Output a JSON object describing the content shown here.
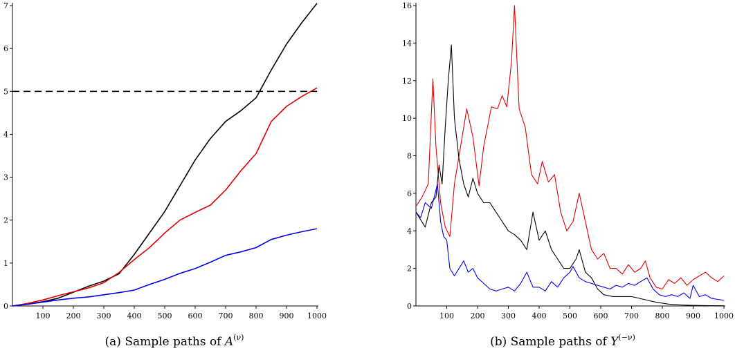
{
  "colors": {
    "black": "#000000",
    "red": "#e00000",
    "blue": "#0000e6"
  },
  "chart_data": [
    {
      "type": "line",
      "caption_prefix": "(a) Sample paths of ",
      "caption_var": "A",
      "caption_sup": "(ν)",
      "xlim": [
        0,
        1000
      ],
      "ylim": [
        0,
        7
      ],
      "x_ticks": [
        100,
        200,
        300,
        400,
        500,
        600,
        700,
        800,
        900,
        1000
      ],
      "y_ticks": [
        0,
        1,
        2,
        3,
        4,
        5,
        6,
        7
      ],
      "threshold": 5,
      "series": [
        {
          "color": "#000000",
          "points": [
            [
              0,
              0
            ],
            [
              50,
              0.04
            ],
            [
              100,
              0.1
            ],
            [
              150,
              0.18
            ],
            [
              200,
              0.32
            ],
            [
              250,
              0.46
            ],
            [
              300,
              0.58
            ],
            [
              350,
              0.75
            ],
            [
              400,
              1.2
            ],
            [
              450,
              1.7
            ],
            [
              500,
              2.2
            ],
            [
              550,
              2.8
            ],
            [
              600,
              3.4
            ],
            [
              650,
              3.9
            ],
            [
              700,
              4.3
            ],
            [
              750,
              4.55
            ],
            [
              800,
              4.85
            ],
            [
              850,
              5.5
            ],
            [
              900,
              6.1
            ],
            [
              950,
              6.6
            ],
            [
              1000,
              7.05
            ]
          ]
        },
        {
          "color": "#e00000",
          "points": [
            [
              0,
              0
            ],
            [
              50,
              0.06
            ],
            [
              100,
              0.14
            ],
            [
              150,
              0.24
            ],
            [
              200,
              0.33
            ],
            [
              250,
              0.42
            ],
            [
              300,
              0.54
            ],
            [
              350,
              0.78
            ],
            [
              400,
              1.08
            ],
            [
              450,
              1.36
            ],
            [
              500,
              1.7
            ],
            [
              550,
              2.0
            ],
            [
              600,
              2.18
            ],
            [
              650,
              2.35
            ],
            [
              700,
              2.7
            ],
            [
              750,
              3.15
            ],
            [
              800,
              3.55
            ],
            [
              850,
              4.3
            ],
            [
              900,
              4.65
            ],
            [
              950,
              4.88
            ],
            [
              1000,
              5.08
            ]
          ]
        },
        {
          "color": "#0000e6",
          "points": [
            [
              0,
              0
            ],
            [
              50,
              0.04
            ],
            [
              100,
              0.09
            ],
            [
              150,
              0.14
            ],
            [
              200,
              0.18
            ],
            [
              250,
              0.21
            ],
            [
              300,
              0.26
            ],
            [
              350,
              0.31
            ],
            [
              400,
              0.37
            ],
            [
              450,
              0.5
            ],
            [
              500,
              0.62
            ],
            [
              550,
              0.76
            ],
            [
              600,
              0.87
            ],
            [
              650,
              1.02
            ],
            [
              700,
              1.18
            ],
            [
              750,
              1.26
            ],
            [
              800,
              1.36
            ],
            [
              850,
              1.55
            ],
            [
              900,
              1.65
            ],
            [
              950,
              1.73
            ],
            [
              1000,
              1.8
            ]
          ]
        }
      ]
    },
    {
      "type": "line",
      "caption_prefix": "(b) Sample paths of ",
      "caption_var": "Y",
      "caption_sup": "(−ν)",
      "xlim": [
        0,
        1000
      ],
      "ylim": [
        0,
        16
      ],
      "x_ticks": [
        100,
        200,
        300,
        400,
        500,
        600,
        700,
        800,
        900,
        1000
      ],
      "y_ticks": [
        0,
        2,
        4,
        6,
        8,
        10,
        12,
        14,
        16
      ],
      "series": [
        {
          "color": "#e00000",
          "points": [
            [
              0,
              5.3
            ],
            [
              20,
              5.8
            ],
            [
              40,
              6.5
            ],
            [
              55,
              12.1
            ],
            [
              65,
              8.5
            ],
            [
              80,
              5.5
            ],
            [
              95,
              4.2
            ],
            [
              110,
              3.7
            ],
            [
              125,
              6.5
            ],
            [
              145,
              8.5
            ],
            [
              165,
              10.5
            ],
            [
              185,
              9.0
            ],
            [
              205,
              6.4
            ],
            [
              220,
              8.5
            ],
            [
              245,
              10.6
            ],
            [
              265,
              10.5
            ],
            [
              280,
              11.2
            ],
            [
              295,
              10.6
            ],
            [
              310,
              13.0
            ],
            [
              320,
              16.0
            ],
            [
              335,
              10.5
            ],
            [
              355,
              9.5
            ],
            [
              375,
              7.0
            ],
            [
              395,
              6.5
            ],
            [
              410,
              7.7
            ],
            [
              430,
              6.6
            ],
            [
              450,
              7.0
            ],
            [
              470,
              5.0
            ],
            [
              490,
              4.0
            ],
            [
              510,
              4.5
            ],
            [
              530,
              6.0
            ],
            [
              550,
              4.5
            ],
            [
              570,
              3.0
            ],
            [
              590,
              2.5
            ],
            [
              610,
              2.8
            ],
            [
              630,
              2.0
            ],
            [
              650,
              2.0
            ],
            [
              670,
              1.7
            ],
            [
              690,
              2.2
            ],
            [
              710,
              1.8
            ],
            [
              730,
              2.0
            ],
            [
              745,
              2.4
            ],
            [
              760,
              1.5
            ],
            [
              780,
              1.0
            ],
            [
              800,
              0.9
            ],
            [
              820,
              1.4
            ],
            [
              840,
              1.2
            ],
            [
              860,
              1.5
            ],
            [
              880,
              1.1
            ],
            [
              900,
              1.4
            ],
            [
              920,
              1.6
            ],
            [
              940,
              1.8
            ],
            [
              960,
              1.5
            ],
            [
              980,
              1.3
            ],
            [
              1000,
              1.6
            ]
          ]
        },
        {
          "color": "#000000",
          "points": [
            [
              0,
              5.0
            ],
            [
              15,
              4.6
            ],
            [
              30,
              4.2
            ],
            [
              50,
              5.5
            ],
            [
              65,
              5.8
            ],
            [
              75,
              7.5
            ],
            [
              85,
              6.5
            ],
            [
              95,
              9.5
            ],
            [
              105,
              12.0
            ],
            [
              115,
              13.9
            ],
            [
              125,
              10.0
            ],
            [
              140,
              7.8
            ],
            [
              155,
              6.5
            ],
            [
              170,
              5.8
            ],
            [
              185,
              6.8
            ],
            [
              200,
              6.0
            ],
            [
              220,
              5.5
            ],
            [
              240,
              5.5
            ],
            [
              260,
              5.0
            ],
            [
              280,
              4.5
            ],
            [
              300,
              4.0
            ],
            [
              320,
              3.8
            ],
            [
              340,
              3.5
            ],
            [
              360,
              3.0
            ],
            [
              380,
              5.0
            ],
            [
              400,
              3.5
            ],
            [
              420,
              4.0
            ],
            [
              440,
              3.0
            ],
            [
              460,
              2.5
            ],
            [
              480,
              2.0
            ],
            [
              500,
              2.0
            ],
            [
              520,
              2.5
            ],
            [
              530,
              3.0
            ],
            [
              550,
              1.8
            ],
            [
              570,
              1.5
            ],
            [
              590,
              0.9
            ],
            [
              610,
              0.6
            ],
            [
              640,
              0.5
            ],
            [
              670,
              0.5
            ],
            [
              700,
              0.5
            ],
            [
              740,
              0.35
            ],
            [
              780,
              0.2
            ],
            [
              820,
              0.1
            ],
            [
              860,
              0.05
            ],
            [
              900,
              0.03
            ],
            [
              950,
              0.02
            ],
            [
              1000,
              0.01
            ]
          ]
        },
        {
          "color": "#0000e6",
          "points": [
            [
              0,
              5.0
            ],
            [
              15,
              4.7
            ],
            [
              30,
              5.5
            ],
            [
              50,
              5.2
            ],
            [
              70,
              6.5
            ],
            [
              80,
              4.5
            ],
            [
              90,
              3.7
            ],
            [
              100,
              3.5
            ],
            [
              110,
              2.0
            ],
            [
              125,
              1.6
            ],
            [
              140,
              2.0
            ],
            [
              155,
              2.4
            ],
            [
              170,
              1.8
            ],
            [
              185,
              2.0
            ],
            [
              200,
              1.5
            ],
            [
              220,
              1.2
            ],
            [
              240,
              0.9
            ],
            [
              260,
              0.8
            ],
            [
              280,
              0.9
            ],
            [
              300,
              1.0
            ],
            [
              320,
              0.8
            ],
            [
              340,
              1.2
            ],
            [
              360,
              1.8
            ],
            [
              380,
              1.0
            ],
            [
              400,
              1.0
            ],
            [
              420,
              0.8
            ],
            [
              440,
              1.3
            ],
            [
              460,
              1.0
            ],
            [
              480,
              1.5
            ],
            [
              500,
              1.8
            ],
            [
              510,
              2.1
            ],
            [
              530,
              1.5
            ],
            [
              550,
              1.3
            ],
            [
              570,
              1.2
            ],
            [
              590,
              1.1
            ],
            [
              610,
              1.0
            ],
            [
              630,
              0.9
            ],
            [
              650,
              1.1
            ],
            [
              670,
              1.0
            ],
            [
              690,
              1.2
            ],
            [
              710,
              1.1
            ],
            [
              730,
              1.3
            ],
            [
              750,
              1.5
            ],
            [
              770,
              0.9
            ],
            [
              790,
              0.6
            ],
            [
              810,
              0.5
            ],
            [
              830,
              0.6
            ],
            [
              850,
              0.5
            ],
            [
              870,
              0.7
            ],
            [
              890,
              0.4
            ],
            [
              900,
              1.1
            ],
            [
              920,
              0.5
            ],
            [
              940,
              0.6
            ],
            [
              960,
              0.4
            ],
            [
              980,
              0.35
            ],
            [
              1000,
              0.3
            ]
          ]
        }
      ]
    }
  ]
}
